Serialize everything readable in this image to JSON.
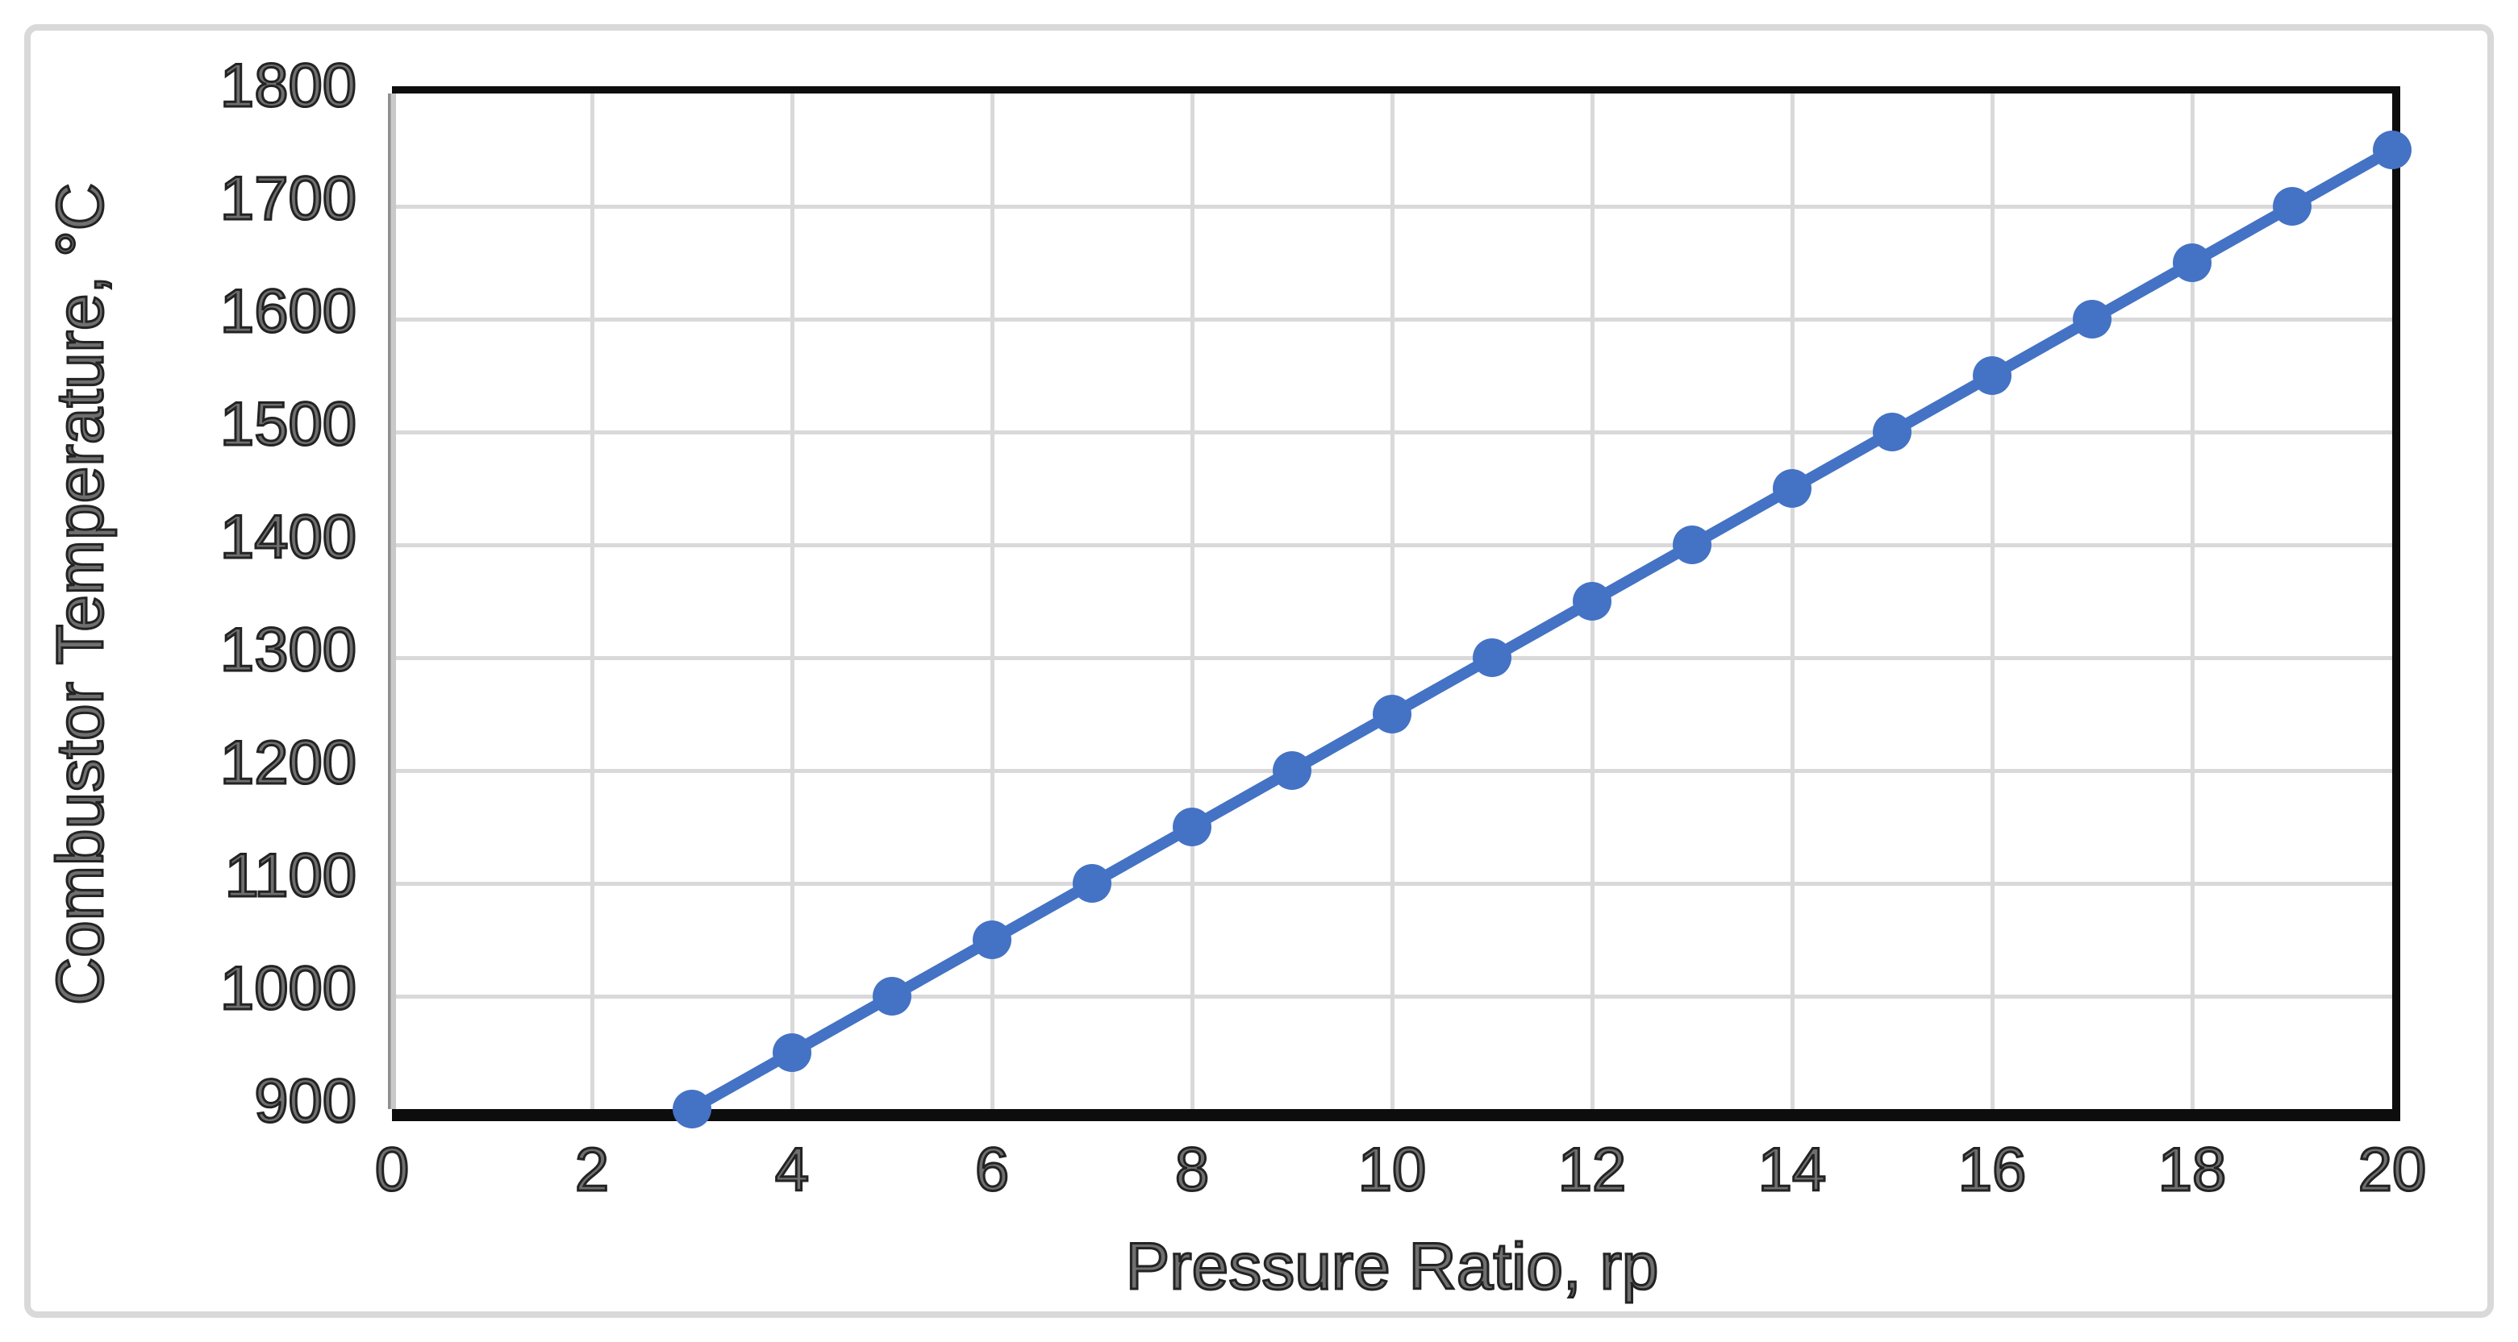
{
  "chart_data": {
    "type": "line",
    "xlabel": "Pressure Ratio, rp",
    "ylabel": "Combustor Temperature, °C",
    "x": [
      3,
      4,
      5,
      6,
      7,
      8,
      9,
      10,
      11,
      12,
      13,
      14,
      15,
      16,
      17,
      18,
      19,
      20
    ],
    "y": [
      900,
      950,
      1000,
      1050,
      1100,
      1150,
      1200,
      1250,
      1300,
      1350,
      1400,
      1450,
      1500,
      1550,
      1600,
      1650,
      1700,
      1750
    ],
    "xlim": [
      0,
      20
    ],
    "ylim": [
      900,
      1800
    ],
    "xticks": [
      0,
      2,
      4,
      6,
      8,
      10,
      12,
      14,
      16,
      18,
      20
    ],
    "yticks": [
      900,
      1000,
      1100,
      1200,
      1300,
      1400,
      1500,
      1600,
      1700,
      1800
    ],
    "grid": true,
    "legend": false,
    "marker": "circle",
    "colors": {
      "line": "#4472C4",
      "marker": "#4472C4",
      "gridline": "#d9d9d9",
      "axis": "#0d0d0d",
      "y_axis_line": "#a6a6a6",
      "figure_border": "#d9d9d9",
      "text": "#232323",
      "background": "#ffffff"
    }
  }
}
